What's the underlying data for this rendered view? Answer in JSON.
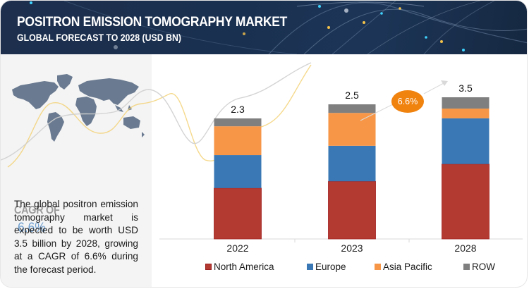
{
  "header": {
    "title": "POSITRON EMISSION TOMOGRAPHY MARKET",
    "subtitle": "GLOBAL FORECAST TO 2028 (USD BN)"
  },
  "sidebar": {
    "map_icon": "world-map",
    "cagr_label": "CAGR OF",
    "cagr_value": "6.6%",
    "description": "The global positron emission tomography market is expected to be worth USD 3.5 billion by 2028, growing at a CAGR of 6.6% during the forecast period."
  },
  "colors": {
    "header_bg": "#1c3252",
    "sidebar_bg": "#f4f4f4",
    "cagr_label": "#9a9a9a",
    "cagr_value": "#6f9fcf",
    "bubble": "#f0820e",
    "north_america": "#b33a31",
    "europe": "#3a78b5",
    "asia_pacific": "#f79646",
    "row": "#7f7f7f"
  },
  "chart_data": {
    "type": "bar",
    "stacked": true,
    "title": "POSITRON EMISSION TOMOGRAPHY MARKET",
    "subtitle": "GLOBAL FORECAST TO 2028 (USD BN)",
    "xlabel": "",
    "ylabel": "",
    "categories": [
      "2022",
      "2023",
      "2028"
    ],
    "totals": [
      "2.3",
      "2.5",
      "3.5"
    ],
    "series": [
      {
        "name": "North America",
        "color": "#b33a31",
        "values": [
          0.97,
          1.07,
          1.85
        ]
      },
      {
        "name": "Europe",
        "color": "#3a78b5",
        "values": [
          0.63,
          0.66,
          1.13
        ]
      },
      {
        "name": "Asia Pacific",
        "color": "#f79646",
        "values": [
          0.55,
          0.61,
          0.24
        ]
      },
      {
        "name": "ROW",
        "color": "#7f7f7f",
        "values": [
          0.15,
          0.16,
          0.28
        ]
      }
    ],
    "annotation": {
      "text": "6.6%",
      "type": "cagr-arrow",
      "from": "2023",
      "to": "2028"
    },
    "legend_position": "bottom",
    "grid": false,
    "y_axis_visible": false
  }
}
